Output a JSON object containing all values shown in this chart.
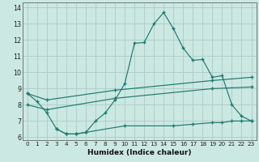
{
  "xlabel": "Humidex (Indice chaleur)",
  "xlim": [
    -0.5,
    23.5
  ],
  "ylim": [
    5.8,
    14.3
  ],
  "yticks": [
    6,
    7,
    8,
    9,
    10,
    11,
    12,
    13,
    14
  ],
  "xticks": [
    0,
    1,
    2,
    3,
    4,
    5,
    6,
    7,
    8,
    9,
    10,
    11,
    12,
    13,
    14,
    15,
    16,
    17,
    18,
    19,
    20,
    21,
    22,
    23
  ],
  "bg_color": "#cce8e3",
  "line_color": "#1e7a6e",
  "grid_color": "#aaccc7",
  "curve_main_x": [
    0,
    1,
    2,
    3,
    4,
    5,
    6,
    7,
    8,
    9,
    10,
    11,
    12,
    13,
    14,
    15,
    16,
    17,
    18,
    19,
    20,
    21,
    22,
    23
  ],
  "curve_main_y": [
    8.7,
    8.2,
    7.5,
    6.5,
    6.2,
    6.2,
    6.3,
    7.0,
    7.5,
    8.3,
    9.3,
    11.8,
    11.85,
    13.0,
    13.7,
    12.7,
    11.5,
    10.75,
    10.8,
    9.7,
    9.8,
    8.0,
    7.3,
    7.0
  ],
  "curve_upper_x": [
    0,
    2,
    9,
    19,
    23
  ],
  "curve_upper_y": [
    8.7,
    8.3,
    8.9,
    9.5,
    9.7
  ],
  "curve_mid_x": [
    0,
    2,
    9,
    19,
    23
  ],
  "curve_mid_y": [
    8.0,
    7.7,
    8.4,
    9.0,
    9.1
  ],
  "curve_lower_x": [
    3,
    4,
    5,
    6,
    10,
    15,
    17,
    19,
    20,
    21,
    22,
    23
  ],
  "curve_lower_y": [
    6.5,
    6.2,
    6.2,
    6.3,
    6.7,
    6.7,
    6.8,
    6.9,
    6.9,
    7.0,
    7.0,
    7.0
  ]
}
